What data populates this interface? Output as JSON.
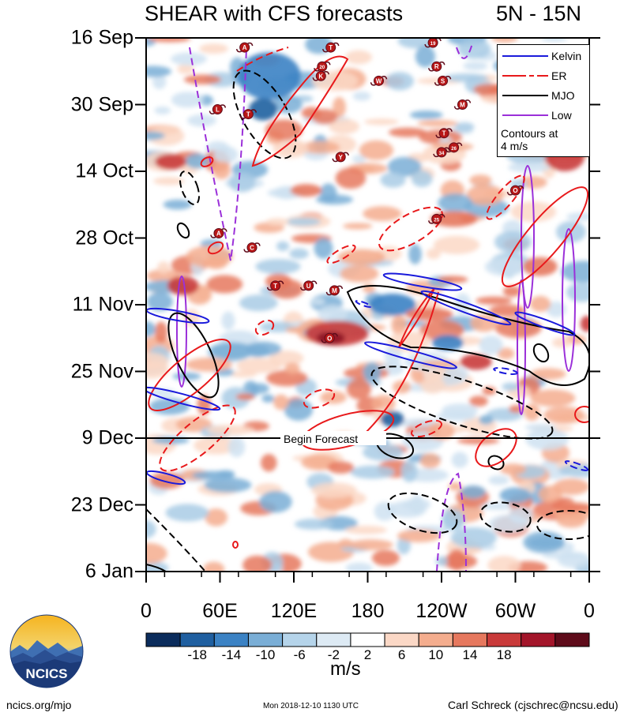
{
  "chart_data": {
    "type": "heatmap",
    "title_left": "SHEAR with CFS forecasts",
    "title_right": "5N - 15N",
    "y_ticks": [
      "16 Sep",
      "30 Sep",
      "14 Oct",
      "28 Oct",
      "11 Nov",
      "25 Nov",
      "9 Dec",
      "23 Dec",
      "6 Jan"
    ],
    "x_ticks": [
      "0",
      "60E",
      "120E",
      "180",
      "120W",
      "60W",
      "0"
    ],
    "x_range_deg_east": [
      0,
      360
    ],
    "forecast_marker": "Begin Forecast",
    "forecast_date": "9 Dec",
    "colorbar": {
      "ticks": [
        "-18",
        "-14",
        "-10",
        "-6",
        "-2",
        "2",
        "6",
        "10",
        "14",
        "18"
      ],
      "colors": [
        "#0b2c5c",
        "#1f5fa0",
        "#3b82c4",
        "#7aaed6",
        "#b5d4ea",
        "#ddeaf4",
        "#ffffff",
        "#fbd8c6",
        "#f4ad8e",
        "#e6785e",
        "#c93a3a",
        "#a3152a",
        "#5e0b1a"
      ],
      "units": "m/s"
    },
    "legend": [
      {
        "label": "Kelvin",
        "color": "#1a1adb",
        "style": "solid"
      },
      {
        "label": "ER",
        "color": "#e8191b",
        "style": "dash"
      },
      {
        "label": "MJO",
        "color": "#000000",
        "style": "solid"
      },
      {
        "label": "Low",
        "color": "#9b30d9",
        "style": "solid"
      }
    ],
    "contour_note": [
      "Contours at",
      "4 m/s"
    ],
    "storms": [
      {
        "label": "A",
        "lon": 80,
        "day": 2
      },
      {
        "label": "T",
        "lon": 150,
        "day": 2
      },
      {
        "label": "19",
        "lon": 233,
        "day": 1
      },
      {
        "label": "20",
        "lon": 143,
        "day": 6
      },
      {
        "label": "K",
        "lon": 142,
        "day": 8
      },
      {
        "label": "R",
        "lon": 236,
        "day": 6
      },
      {
        "label": "W",
        "lon": 189,
        "day": 9
      },
      {
        "label": "S",
        "lon": 241,
        "day": 9
      },
      {
        "label": "L",
        "lon": 58,
        "day": 15
      },
      {
        "label": "T",
        "lon": 83,
        "day": 16
      },
      {
        "label": "M",
        "lon": 257,
        "day": 14
      },
      {
        "label": "T",
        "lon": 242,
        "day": 20
      },
      {
        "label": "Y",
        "lon": 158,
        "day": 25
      },
      {
        "label": "34",
        "lon": 240,
        "day": 24
      },
      {
        "label": "26",
        "lon": 250,
        "day": 23
      },
      {
        "label": "O",
        "lon": 300,
        "day": 32
      },
      {
        "label": "25",
        "lon": 236,
        "day": 38
      },
      {
        "label": "A",
        "lon": 59,
        "day": 41
      },
      {
        "label": "C",
        "lon": 86,
        "day": 44
      },
      {
        "label": "T",
        "lon": 105,
        "day": 52
      },
      {
        "label": "U",
        "lon": 132,
        "day": 52
      },
      {
        "label": "M",
        "lon": 153,
        "day": 53
      },
      {
        "label": "O",
        "lon": 149,
        "day": 63
      }
    ]
  },
  "footer": {
    "left": "ncics.org/mjo",
    "mid": "Mon 2018-12-10 1130 UTC",
    "right": "Carl Schreck (cjschrec@ncsu.edu)"
  },
  "logo_text": "NCICS"
}
